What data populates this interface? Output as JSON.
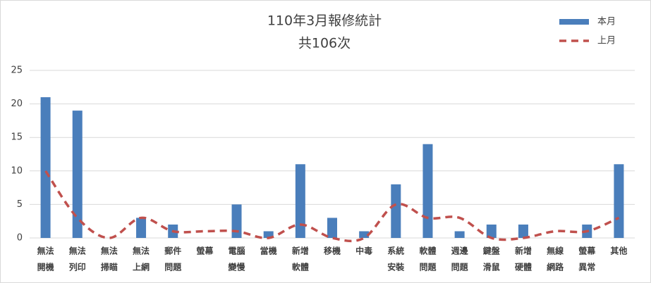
{
  "chart_data": {
    "type": "bar_line",
    "title": "110年3月報修統計",
    "subtitle": "共106次",
    "categories": [
      [
        "無法",
        "開機"
      ],
      [
        "無法",
        "列印"
      ],
      [
        "無法",
        "掃瞄"
      ],
      [
        "無法",
        "上網"
      ],
      [
        "郵件",
        "問題"
      ],
      [
        "螢幕"
      ],
      [
        "電腦",
        "變慢"
      ],
      [
        "當機"
      ],
      [
        "新增",
        "軟體"
      ],
      [
        "移機"
      ],
      [
        "中毒"
      ],
      [
        "系統",
        "安裝"
      ],
      [
        "軟體",
        "問題"
      ],
      [
        "週邊",
        "問題"
      ],
      [
        "鍵盤",
        "滑鼠"
      ],
      [
        "新增",
        "硬體"
      ],
      [
        "無線",
        "網路"
      ],
      [
        "螢幕",
        "異常"
      ],
      [
        "其他"
      ]
    ],
    "series": [
      {
        "name": "本月",
        "type": "bar",
        "color": "#4a7ebb",
        "values": [
          21,
          19,
          0,
          3,
          2,
          0,
          5,
          1,
          11,
          3,
          1,
          8,
          14,
          1,
          2,
          2,
          0,
          2,
          11
        ]
      },
      {
        "name": "上月",
        "type": "line",
        "dashed": true,
        "smooth": true,
        "color": "#c0504d",
        "values": [
          10,
          3,
          0,
          3,
          1,
          1,
          1,
          0,
          2,
          0,
          0,
          5,
          3,
          3,
          0,
          0,
          1,
          1,
          3
        ]
      }
    ],
    "ylim": [
      0,
      25
    ],
    "yticks": [
      0,
      5,
      10,
      15,
      20,
      25
    ],
    "grid": true,
    "legend": "top-right"
  }
}
